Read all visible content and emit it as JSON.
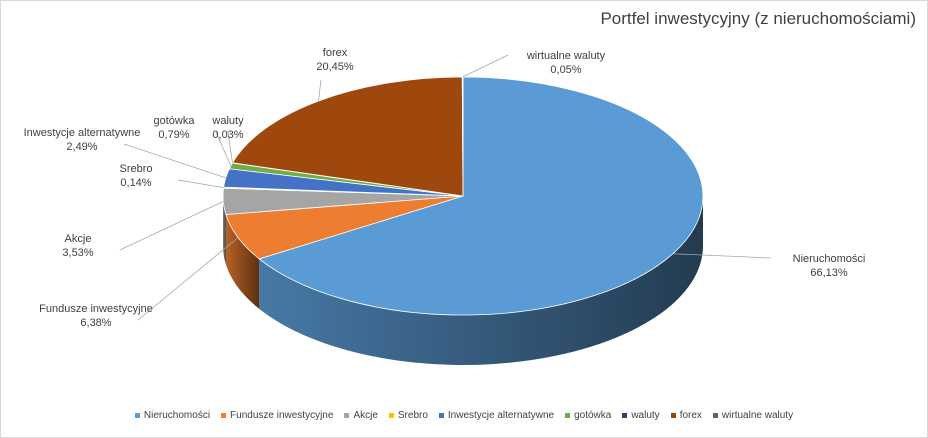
{
  "chart_data": {
    "type": "pie",
    "title": "Portfel inwestycyjny (z nieruchomościami)",
    "legend_position": "bottom",
    "categories": [
      "Nieruchomości",
      "Fundusze inwestycyjne",
      "Akcje",
      "Srebro",
      "Inwestycje alternatywne",
      "gotówka",
      "waluty",
      "forex",
      "wirtualne waluty"
    ],
    "values": [
      66.13,
      6.38,
      3.53,
      0.14,
      2.49,
      0.79,
      0.03,
      20.45,
      0.05
    ],
    "value_labels": [
      "66,13%",
      "6,38%",
      "3,53%",
      "0,14%",
      "2,49%",
      "0,79%",
      "0,03%",
      "20,45%",
      "0,05%"
    ],
    "colors": [
      "#5b9bd5",
      "#ed7d31",
      "#a5a5a5",
      "#ffc000",
      "#4472c4",
      "#70ad47",
      "#264478",
      "#9e480e",
      "#636363"
    ]
  }
}
